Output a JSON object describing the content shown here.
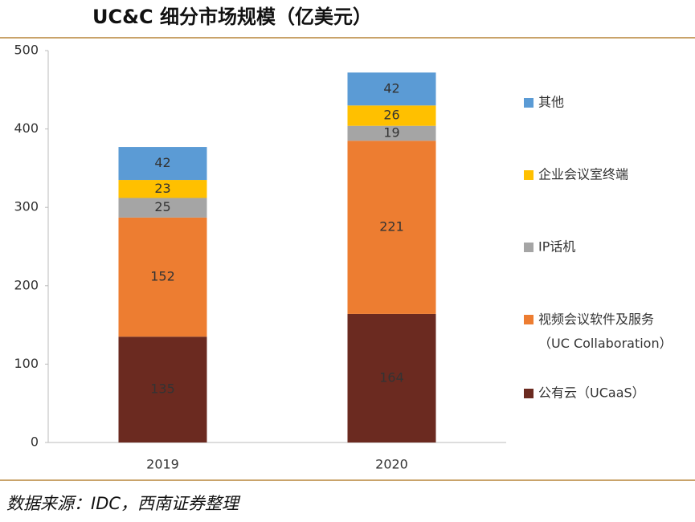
{
  "chart_data": {
    "type": "stacked_bar",
    "title": "UC&C 细分市场规模（亿美元）",
    "categories": [
      "2019",
      "2020"
    ],
    "series": [
      {
        "name": "公有云（UCaaS）",
        "color": "#6b2a20",
        "values": [
          135,
          164
        ]
      },
      {
        "name": "视频会议软件及服务（UC Collaboration）",
        "color": "#ed7d31",
        "values": [
          152,
          221
        ]
      },
      {
        "name": "IP话机",
        "color": "#a5a5a5",
        "values": [
          25,
          19
        ]
      },
      {
        "name": "企业会议室终端",
        "color": "#ffc000",
        "values": [
          23,
          26
        ]
      },
      {
        "name": "其他",
        "color": "#5b9bd5",
        "values": [
          42,
          42
        ]
      }
    ],
    "ylim": [
      0,
      500
    ],
    "yticks": [
      0,
      100,
      200,
      300,
      400,
      500
    ],
    "source": "数据来源：IDC，西南证券整理"
  }
}
